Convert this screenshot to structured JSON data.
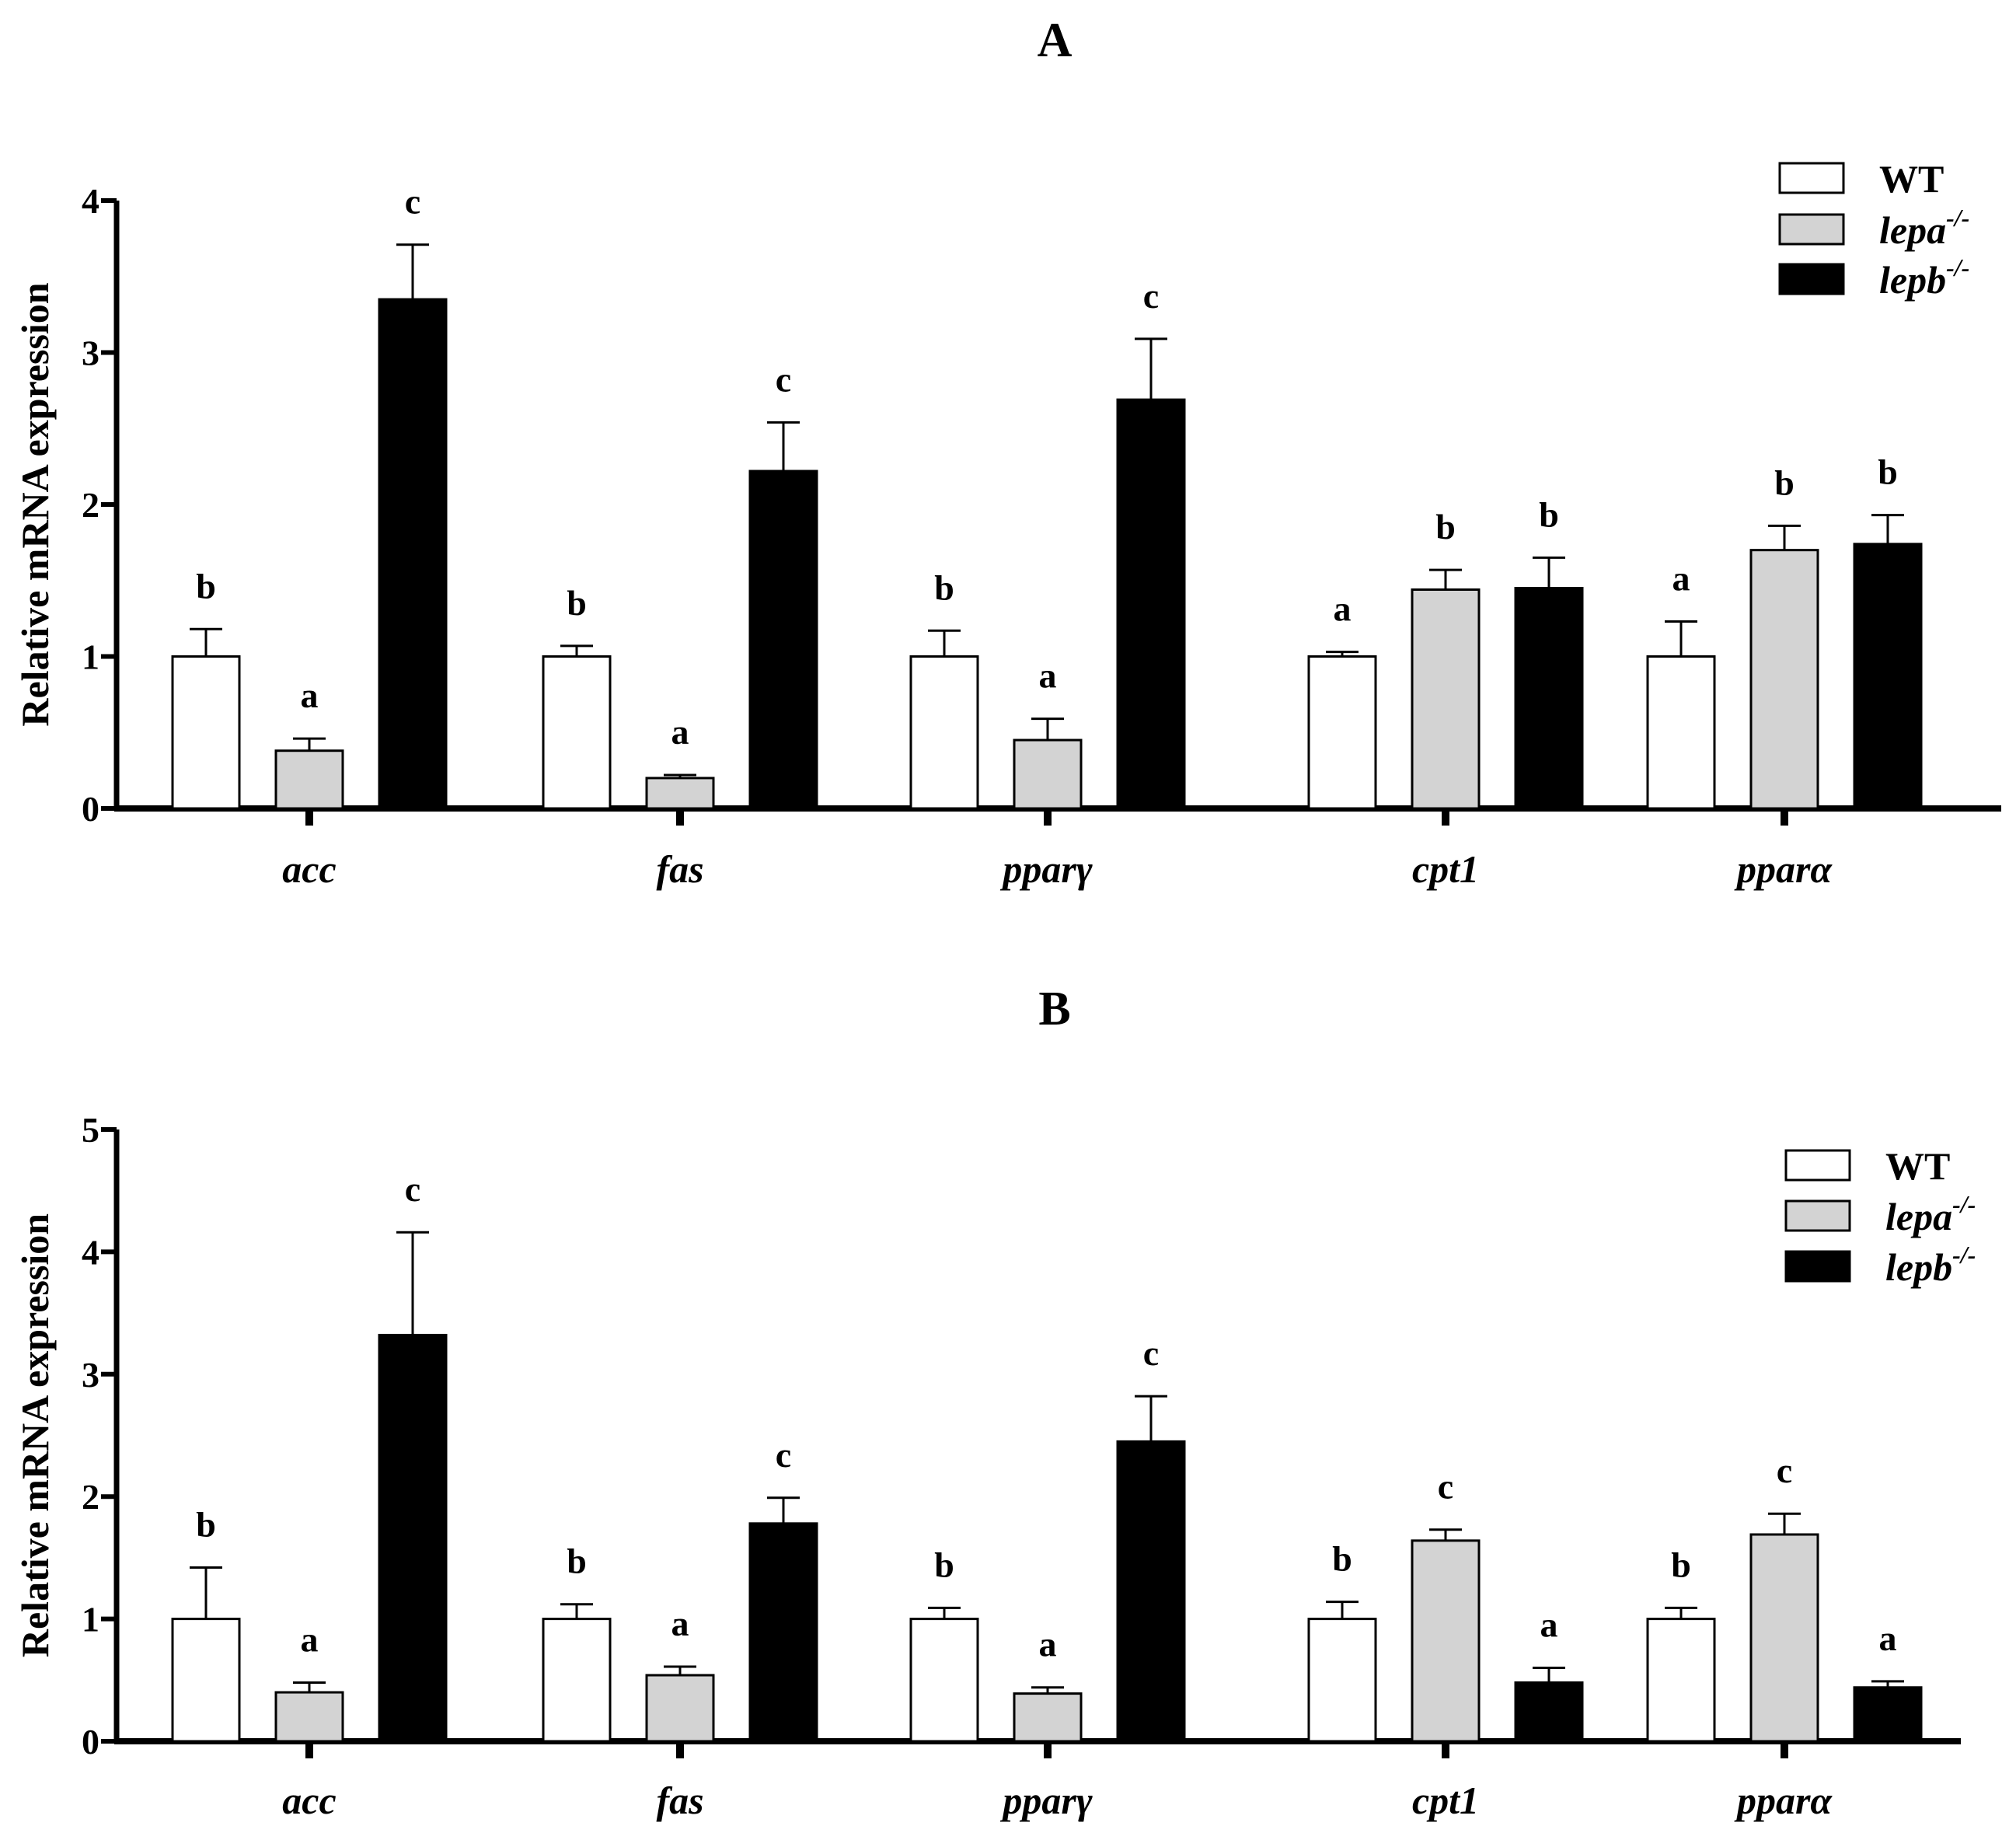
{
  "figure": {
    "colors": {
      "WT": "#ffffff",
      "lepa": "#d3d3d3",
      "lepb": "#000000",
      "axis": "#000000"
    }
  },
  "chart_data": [
    {
      "type": "bar",
      "title": "A",
      "ylabel": "Relative mRNA expression",
      "xlabel": "",
      "ylim": [
        0,
        4
      ],
      "yticks": [
        0,
        1,
        2,
        3,
        4
      ],
      "categories": [
        "acc",
        "fas",
        "pparγ",
        "cpt1",
        "pparα"
      ],
      "legend": {
        "position": "top-right",
        "entries": [
          {
            "base": "WT",
            "sup": ""
          },
          {
            "base": "lepa",
            "sup": "-/-"
          },
          {
            "base": "lepb",
            "sup": "-/-"
          }
        ]
      },
      "series": [
        {
          "name": "WT",
          "values": [
            1.0,
            1.0,
            1.0,
            1.0,
            1.0
          ],
          "errors": [
            0.18,
            0.07,
            0.17,
            0.03,
            0.23
          ],
          "labels": [
            "b",
            "b",
            "b",
            "a",
            "a"
          ]
        },
        {
          "name": "lepa-/-",
          "values": [
            0.38,
            0.2,
            0.45,
            1.44,
            1.7
          ],
          "errors": [
            0.08,
            0.02,
            0.14,
            0.13,
            0.16
          ],
          "labels": [
            "a",
            "a",
            "a",
            "b",
            "b"
          ]
        },
        {
          "name": "lepb-/-",
          "values": [
            3.35,
            2.22,
            2.69,
            1.45,
            1.74
          ],
          "errors": [
            0.36,
            0.32,
            0.4,
            0.2,
            0.19
          ],
          "labels": [
            "c",
            "c",
            "c",
            "b",
            "b"
          ]
        }
      ]
    },
    {
      "type": "bar",
      "title": "B",
      "ylabel": "Relative mRNA expression",
      "xlabel": "",
      "ylim": [
        0,
        5
      ],
      "yticks": [
        0,
        1,
        2,
        3,
        4,
        5
      ],
      "categories": [
        "acc",
        "fas",
        "pparγ",
        "cpt1",
        "pparα"
      ],
      "legend": {
        "position": "top-right",
        "entries": [
          {
            "base": "WT",
            "sup": ""
          },
          {
            "base": "lepa",
            "sup": "-/-"
          },
          {
            "base": "lepb",
            "sup": "-/-"
          }
        ]
      },
      "series": [
        {
          "name": "WT",
          "values": [
            1.0,
            1.0,
            1.0,
            1.0,
            1.0
          ],
          "errors": [
            0.42,
            0.12,
            0.09,
            0.14,
            0.09
          ],
          "labels": [
            "b",
            "b",
            "b",
            "b",
            "b"
          ]
        },
        {
          "name": "lepa-/-",
          "values": [
            0.4,
            0.54,
            0.39,
            1.64,
            1.69
          ],
          "errors": [
            0.08,
            0.07,
            0.05,
            0.09,
            0.17
          ],
          "labels": [
            "a",
            "a",
            "a",
            "c",
            "c"
          ]
        },
        {
          "name": "lepb-/-",
          "values": [
            3.32,
            1.78,
            2.45,
            0.48,
            0.44
          ],
          "errors": [
            0.84,
            0.21,
            0.37,
            0.12,
            0.05
          ],
          "labels": [
            "c",
            "c",
            "c",
            "a",
            "a"
          ]
        }
      ]
    }
  ]
}
